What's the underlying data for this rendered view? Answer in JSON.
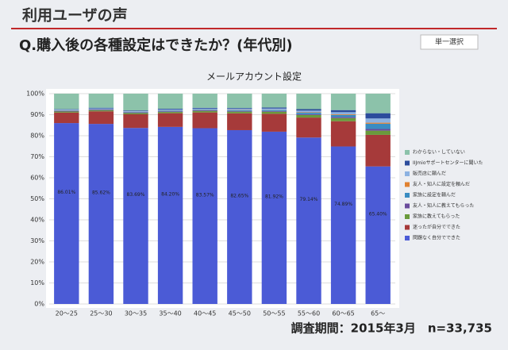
{
  "header": {
    "title": "利用ユーザの声",
    "question": "Q.購入後の各種設定はできたか？(年代別)",
    "tag": "単一選択",
    "footer": "調査期間：2015年3月　n=33,735"
  },
  "chart_data": {
    "type": "stacked_bar",
    "title": "メールアカウント設定",
    "categories": [
      "20～25",
      "25～30",
      "30～35",
      "35～40",
      "40～45",
      "45～50",
      "50～55",
      "55～60",
      "60～65",
      "65～"
    ],
    "series": [
      {
        "name": "問題なく自分でできた",
        "color": "#4b5bd6",
        "values": [
          86.01,
          85.62,
          83.69,
          84.2,
          83.57,
          82.65,
          81.92,
          79.14,
          74.89,
          65.4
        ],
        "value_labels": [
          "86.01%",
          "85.62%",
          "83.69%",
          "84.20%",
          "83.57%",
          "82.65%",
          "81.92%",
          "79.14%",
          "74.89%",
          "65.40%"
        ]
      },
      {
        "name": "迷ったが自分でできた",
        "color": "#a63a3a",
        "values": [
          5.0,
          6.0,
          6.5,
          6.5,
          7.5,
          8.0,
          8.5,
          9.5,
          12.0,
          15.0
        ]
      },
      {
        "name": "家族に教えてもらった",
        "color": "#6a9a3c",
        "values": [
          0.5,
          0.5,
          0.6,
          0.6,
          0.7,
          0.8,
          1.0,
          1.2,
          1.5,
          2.0
        ]
      },
      {
        "name": "友人・知人に教えてもらった",
        "color": "#6a4c9c",
        "values": [
          0.3,
          0.3,
          0.3,
          0.3,
          0.3,
          0.3,
          0.3,
          0.4,
          0.5,
          0.8
        ]
      },
      {
        "name": "家族に設定を頼んだ",
        "color": "#3a8cc2",
        "values": [
          0.2,
          0.2,
          0.2,
          0.3,
          0.3,
          0.4,
          0.5,
          0.7,
          1.0,
          2.5
        ]
      },
      {
        "name": "友人・知人に設定を頼んだ",
        "color": "#e08232",
        "values": [
          0.1,
          0.1,
          0.1,
          0.1,
          0.1,
          0.1,
          0.1,
          0.2,
          0.3,
          0.5
        ]
      },
      {
        "name": "販売店に頼んだ",
        "color": "#8cb2e2",
        "values": [
          0.3,
          0.3,
          0.3,
          0.4,
          0.4,
          0.5,
          0.6,
          0.8,
          1.0,
          2.0
        ]
      },
      {
        "name": "IIJmioサポートセンターに聞いた",
        "color": "#2c4c9c",
        "values": [
          0.2,
          0.3,
          0.3,
          0.4,
          0.4,
          0.4,
          0.5,
          0.7,
          1.0,
          2.5
        ]
      },
      {
        "name": "わからない・していない",
        "color": "#8cc2aa",
        "values": [
          7.39,
          6.68,
          8.01,
          7.2,
          6.73,
          6.85,
          6.58,
          7.36,
          7.81,
          9.3
        ]
      }
    ],
    "ylim": [
      0,
      100
    ],
    "yticks": [
      {
        "value": 0,
        "label": "0%"
      },
      {
        "value": 10,
        "label": "10%"
      },
      {
        "value": 20,
        "label": "20%"
      },
      {
        "value": 30,
        "label": "30%"
      },
      {
        "value": 40,
        "label": "40%"
      },
      {
        "value": 50,
        "label": "50%"
      },
      {
        "value": 60,
        "label": "60%"
      },
      {
        "value": 70,
        "label": "70%"
      },
      {
        "value": 80,
        "label": "80%"
      },
      {
        "value": 90,
        "label": "90%"
      },
      {
        "value": 100,
        "label": "100%"
      }
    ],
    "grid": true
  }
}
